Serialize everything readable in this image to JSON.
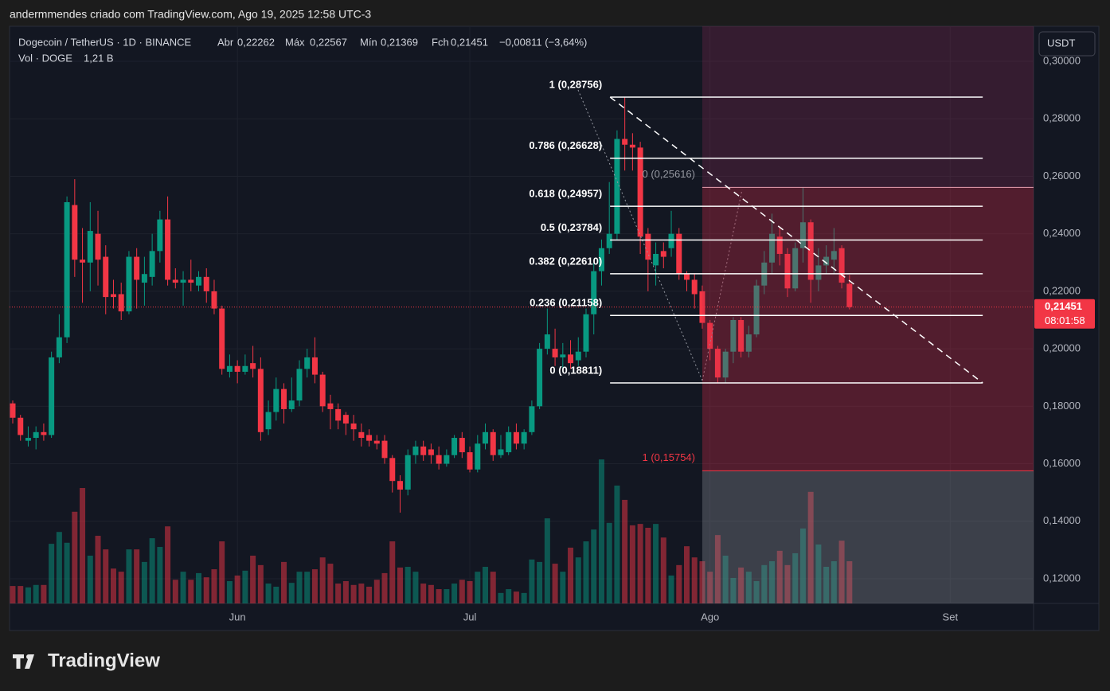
{
  "header": {
    "credit": "andermmendes criado com TradingView.com, Ago 19, 2025 12:58 UTC-3"
  },
  "chart_data": {
    "type": "candlestick",
    "legend": {
      "symbol": "Dogecoin / TetherUS · 1D · BINANCE",
      "open_label": "Abr",
      "open": "0,22262",
      "high_label": "Máx",
      "high": "0,22567",
      "low_label": "Mín",
      "low": "0,21369",
      "close_label": "Fch",
      "close": "0,21451",
      "change": "−0,00811 (−3,64%)",
      "volume_label": "Vol · DOGE",
      "volume": "1,21 B"
    },
    "x": [
      0,
      1,
      2,
      3,
      4,
      5,
      6,
      7,
      8,
      9,
      10,
      11,
      12,
      13,
      14,
      15,
      16,
      17,
      18,
      19,
      20,
      21,
      22,
      23,
      24,
      25,
      26,
      27,
      28,
      29,
      30,
      31,
      32,
      33,
      34,
      35,
      36,
      37,
      38,
      39,
      40,
      41,
      42,
      43,
      44,
      45,
      46,
      47,
      48,
      49,
      50,
      51,
      52,
      53,
      54,
      55,
      56,
      57,
      58,
      59,
      60,
      61,
      62,
      63,
      64,
      65,
      66,
      67,
      68,
      69,
      70,
      71,
      72,
      73,
      74,
      75,
      76,
      77,
      78,
      79,
      80,
      81,
      82,
      83,
      84,
      85,
      86,
      87,
      88,
      89,
      90,
      91,
      92,
      93,
      94,
      95,
      96,
      97,
      98,
      99,
      100,
      101,
      102,
      103,
      104,
      105,
      106,
      107,
      108
    ],
    "xlim": [
      -0.41,
      131.76
    ],
    "xticks": [
      {
        "value": 29,
        "label": "Jun"
      },
      {
        "value": 59,
        "label": "Jul"
      },
      {
        "value": 90,
        "label": "Ago"
      },
      {
        "value": 121,
        "label": "Set"
      }
    ],
    "open": [
      0.181,
      0.176,
      0.168,
      0.169,
      0.171,
      0.17,
      0.197,
      0.204,
      0.25,
      0.231,
      0.23,
      0.24,
      0.232,
      0.219,
      0.219,
      0.213,
      0.232,
      0.223,
      0.225,
      0.234,
      0.245,
      0.224,
      0.223,
      0.224,
      0.222,
      0.225,
      0.22,
      0.214,
      0.192,
      0.194,
      0.192,
      0.195,
      0.193,
      0.172,
      0.178,
      0.186,
      0.179,
      0.182,
      0.193,
      0.197,
      0.191,
      0.181,
      0.179,
      0.177,
      0.174,
      0.171,
      0.17,
      0.168,
      0.168,
      0.162,
      0.154,
      0.151,
      0.163,
      0.166,
      0.165,
      0.163,
      0.16,
      0.163,
      0.169,
      0.164,
      0.158,
      0.167,
      0.171,
      0.163,
      0.164,
      0.171,
      0.167,
      0.171,
      0.18,
      0.2,
      0.2,
      0.197,
      0.198,
      0.196,
      0.199,
      0.212,
      0.227,
      0.235,
      0.24,
      0.273,
      0.271,
      0.27,
      0.24,
      0.229,
      0.234,
      0.235,
      0.24,
      0.226,
      0.224,
      0.22,
      0.209,
      0.2,
      0.19,
      0.199,
      0.21,
      0.199,
      0.205,
      0.222,
      0.23,
      0.239,
      0.233,
      0.221,
      0.235,
      0.244,
      0.224,
      0.229,
      0.231,
      0.235,
      0.22262
    ],
    "high": [
      0.182,
      0.177,
      0.173,
      0.173,
      0.174,
      0.199,
      0.212,
      0.253,
      0.259,
      0.242,
      0.251,
      0.248,
      0.236,
      0.224,
      0.223,
      0.234,
      0.235,
      0.232,
      0.24,
      0.248,
      0.253,
      0.228,
      0.227,
      0.231,
      0.227,
      0.228,
      0.224,
      0.215,
      0.198,
      0.196,
      0.198,
      0.201,
      0.197,
      0.182,
      0.19,
      0.188,
      0.19,
      0.196,
      0.2,
      0.204,
      0.192,
      0.184,
      0.181,
      0.178,
      0.177,
      0.174,
      0.172,
      0.17,
      0.17,
      0.163,
      0.156,
      0.165,
      0.168,
      0.168,
      0.167,
      0.166,
      0.165,
      0.17,
      0.171,
      0.166,
      0.17,
      0.174,
      0.172,
      0.17,
      0.173,
      0.174,
      0.172,
      0.182,
      0.202,
      0.214,
      0.207,
      0.202,
      0.203,
      0.204,
      0.214,
      0.23,
      0.238,
      0.258,
      0.276,
      0.28756,
      0.275,
      0.272,
      0.242,
      0.237,
      0.237,
      0.248,
      0.242,
      0.227,
      0.226,
      0.222,
      0.21,
      0.201,
      0.2,
      0.211,
      0.211,
      0.208,
      0.224,
      0.234,
      0.247,
      0.242,
      0.235,
      0.237,
      0.25616,
      0.245,
      0.235,
      0.236,
      0.242,
      0.236,
      0.22567
    ],
    "low": [
      0.174,
      0.168,
      0.166,
      0.165,
      0.168,
      0.169,
      0.195,
      0.202,
      0.225,
      0.216,
      0.22,
      0.222,
      0.212,
      0.214,
      0.21,
      0.212,
      0.214,
      0.215,
      0.222,
      0.23,
      0.222,
      0.221,
      0.215,
      0.22,
      0.22,
      0.216,
      0.212,
      0.191,
      0.19,
      0.188,
      0.191,
      0.19,
      0.168,
      0.17,
      0.175,
      0.174,
      0.178,
      0.18,
      0.19,
      0.188,
      0.178,
      0.172,
      0.172,
      0.17,
      0.168,
      0.166,
      0.166,
      0.165,
      0.16,
      0.15,
      0.143,
      0.149,
      0.16,
      0.161,
      0.16,
      0.158,
      0.159,
      0.162,
      0.162,
      0.157,
      0.157,
      0.165,
      0.161,
      0.162,
      0.163,
      0.165,
      0.165,
      0.17,
      0.179,
      0.198,
      0.194,
      0.192,
      0.193,
      0.194,
      0.197,
      0.205,
      0.222,
      0.233,
      0.238,
      0.262,
      0.262,
      0.233,
      0.22,
      0.222,
      0.228,
      0.232,
      0.224,
      0.22,
      0.214,
      0.207,
      0.196,
      0.188,
      0.188,
      0.195,
      0.197,
      0.197,
      0.204,
      0.219,
      0.226,
      0.229,
      0.218,
      0.22,
      0.23,
      0.216,
      0.22,
      0.226,
      0.226,
      0.221,
      0.21369
    ],
    "close": [
      0.176,
      0.17,
      0.169,
      0.171,
      0.17,
      0.197,
      0.204,
      0.251,
      0.231,
      0.23,
      0.241,
      0.231,
      0.218,
      0.218,
      0.213,
      0.232,
      0.224,
      0.226,
      0.234,
      0.245,
      0.224,
      0.223,
      0.224,
      0.223,
      0.225,
      0.22,
      0.214,
      0.193,
      0.194,
      0.192,
      0.194,
      0.193,
      0.171,
      0.178,
      0.186,
      0.179,
      0.182,
      0.193,
      0.197,
      0.191,
      0.18,
      0.179,
      0.175,
      0.174,
      0.172,
      0.169,
      0.168,
      0.167,
      0.162,
      0.154,
      0.151,
      0.163,
      0.166,
      0.163,
      0.163,
      0.16,
      0.163,
      0.169,
      0.164,
      0.158,
      0.167,
      0.171,
      0.163,
      0.165,
      0.171,
      0.167,
      0.171,
      0.18,
      0.2,
      0.205,
      0.197,
      0.198,
      0.195,
      0.199,
      0.212,
      0.227,
      0.235,
      0.24,
      0.273,
      0.271,
      0.27,
      0.239,
      0.231,
      0.233,
      0.232,
      0.24,
      0.226,
      0.224,
      0.219,
      0.209,
      0.2,
      0.19,
      0.199,
      0.21,
      0.199,
      0.205,
      0.222,
      0.23,
      0.24,
      0.233,
      0.221,
      0.235,
      0.244,
      0.224,
      0.229,
      0.232,
      0.234,
      0.223,
      0.21451
    ],
    "volume": [
      0.5,
      0.5,
      0.46,
      0.53,
      0.53,
      1.71,
      2.05,
      1.74,
      2.63,
      3.31,
      1.37,
      1.94,
      1.55,
      1.0,
      0.91,
      1.55,
      1.55,
      1.19,
      1.87,
      1.62,
      2.21,
      0.68,
      0.91,
      0.68,
      0.87,
      0.75,
      0.98,
      1.78,
      0.64,
      0.8,
      0.94,
      1.37,
      1.1,
      0.57,
      0.48,
      1.19,
      0.59,
      0.91,
      0.91,
      0.98,
      1.32,
      1.14,
      0.57,
      0.64,
      0.53,
      0.57,
      0.48,
      0.68,
      0.87,
      1.78,
      1.03,
      1.05,
      0.91,
      0.57,
      0.53,
      0.41,
      0.41,
      0.57,
      0.68,
      0.64,
      0.91,
      1.05,
      0.91,
      0.3,
      0.41,
      0.34,
      0.3,
      1.26,
      1.19,
      2.44,
      1.14,
      0.91,
      1.6,
      1.32,
      1.78,
      2.12,
      4.13,
      2.31,
      3.38,
      2.97,
      2.24,
      2.28,
      2.17,
      2.28,
      1.89,
      0.8,
      1.1,
      1.64,
      1.32,
      1.21,
      0.91,
      1.96,
      1.37,
      0.73,
      1.03,
      0.91,
      0.64,
      1.1,
      1.21,
      1.51,
      1.1,
      1.44,
      2.15,
      3.2,
      1.69,
      1.05,
      1.21,
      1.8,
      1.21
    ],
    "colors": {
      "up": "#089981",
      "down": "#f23645"
    },
    "ylim": [
      0.1114,
      0.3122
    ],
    "yticks": [
      {
        "value": 0.3,
        "label": "0,30000"
      },
      {
        "value": 0.28,
        "label": "0,28000"
      },
      {
        "value": 0.26,
        "label": "0,26000"
      },
      {
        "value": 0.24,
        "label": "0,24000"
      },
      {
        "value": 0.22,
        "label": "0,22000"
      },
      {
        "value": 0.2,
        "label": "0,20000"
      },
      {
        "value": 0.18,
        "label": "0,18000"
      },
      {
        "value": 0.16,
        "label": "0,16000"
      },
      {
        "value": 0.14,
        "label": "0,14000"
      },
      {
        "value": 0.12,
        "label": "0,12000"
      }
    ],
    "grid": true,
    "currency": "USDT",
    "last_price": {
      "value": 0.21451,
      "label": "0,21451",
      "countdown": "08:01:58"
    },
    "fib": {
      "x_start": 77.1,
      "x_end": 125.2,
      "levels": [
        {
          "value": 0.28756,
          "label": "1 (0,28756)"
        },
        {
          "value": 0.26628,
          "label": "0.786 (0,26628)"
        },
        {
          "value": 0.24957,
          "label": "0.618 (0,24957)"
        },
        {
          "value": 0.23784,
          "label": "0.5 (0,23784)"
        },
        {
          "value": 0.2261,
          "label": "0.382 (0,22610)"
        },
        {
          "value": 0.21158,
          "label": "0.236 (0,21158)"
        },
        {
          "value": 0.18811,
          "label": "0 (0,18811)"
        }
      ]
    },
    "position": {
      "x_start": 89.0,
      "entry": {
        "value": 0.25616,
        "label": "0 (0,25616)"
      },
      "target": {
        "value": 0.15754,
        "label": "1 (0,15754)"
      }
    }
  },
  "footer": {
    "logo": "TradingView"
  }
}
